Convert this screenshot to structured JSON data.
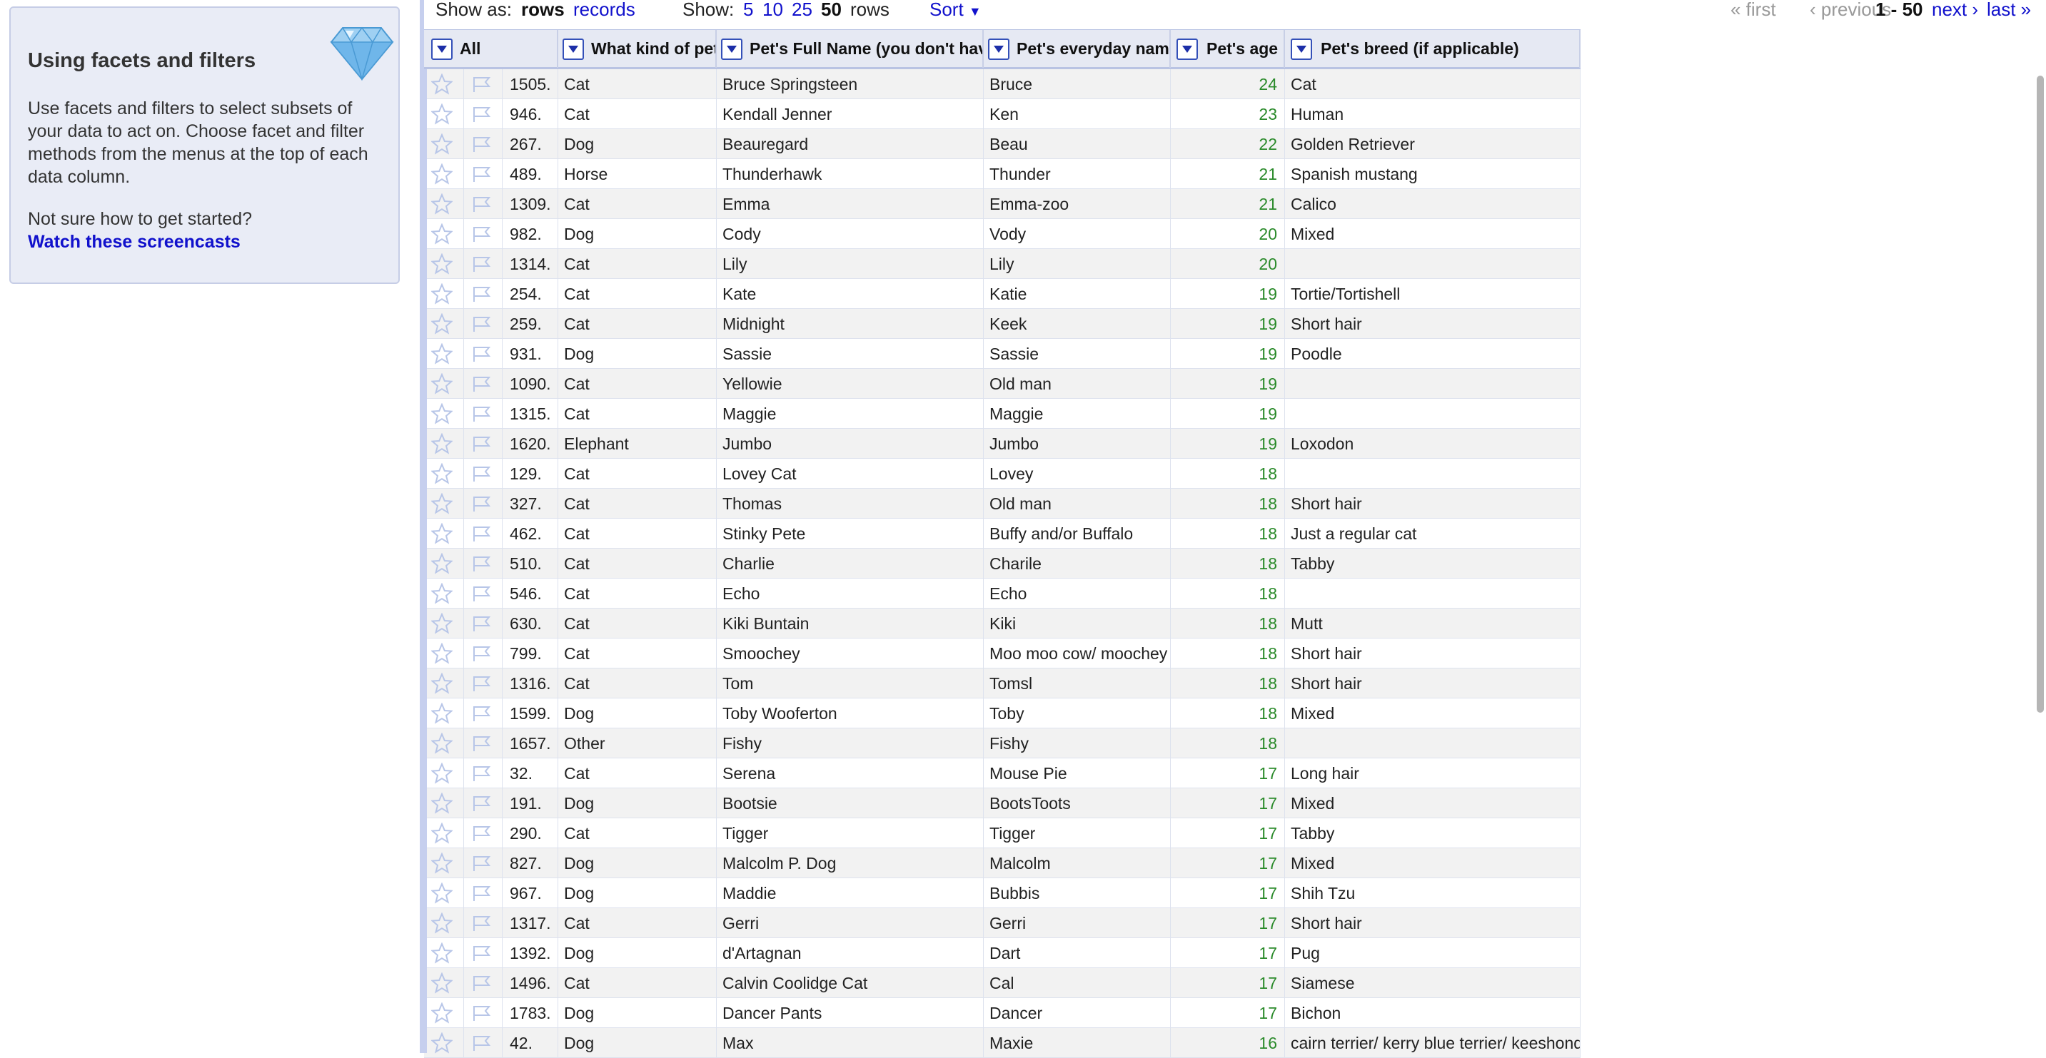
{
  "help": {
    "title": "Using facets and filters",
    "body": "Use facets and filters to select subsets of your data to act on. Choose facet and filter methods from the menus at the top of each data column.",
    "question": "Not sure how to get started?",
    "link": "Watch these screencasts",
    "icon": "diamond-icon"
  },
  "toolbar": {
    "show_as_label": "Show as:",
    "rows_mode": "rows",
    "records_mode": "records",
    "show_label": "Show:",
    "size_5": "5",
    "size_10": "10",
    "size_25": "25",
    "size_50": "50",
    "rows_suffix": "rows",
    "sort_label": "Sort",
    "first": "« first",
    "previous": "‹ previous",
    "range": "1 - 50",
    "next": "next ›",
    "last": "last »"
  },
  "columns": {
    "all": "All",
    "kind": "What kind of pet",
    "full_name": "Pet's Full Name (you don't have",
    "everyday": "Pet's everyday name",
    "age": "Pet's age",
    "breed": "Pet's breed (if applicable)"
  },
  "colors": {
    "link": "#1111cc",
    "age_number": "#2a8a2a",
    "header_bg": "#e6e9f3",
    "help_bg": "#e9ecf6"
  },
  "rows": [
    {
      "num": "1505.",
      "kind": "Cat",
      "full": "Bruce Springsteen",
      "every": "Bruce",
      "age": "24",
      "breed": "Cat"
    },
    {
      "num": "946.",
      "kind": "Cat",
      "full": "Kendall Jenner",
      "every": "Ken",
      "age": "23",
      "breed": "Human"
    },
    {
      "num": "267.",
      "kind": "Dog",
      "full": "Beauregard",
      "every": "Beau",
      "age": "22",
      "breed": "Golden Retriever"
    },
    {
      "num": "489.",
      "kind": "Horse",
      "full": "Thunderhawk",
      "every": "Thunder",
      "age": "21",
      "breed": "Spanish mustang"
    },
    {
      "num": "1309.",
      "kind": "Cat",
      "full": "Emma",
      "every": "Emma-zoo",
      "age": "21",
      "breed": "Calico"
    },
    {
      "num": "982.",
      "kind": "Dog",
      "full": "Cody",
      "every": "Vody",
      "age": "20",
      "breed": "Mixed"
    },
    {
      "num": "1314.",
      "kind": "Cat",
      "full": "Lily",
      "every": "Lily",
      "age": "20",
      "breed": ""
    },
    {
      "num": "254.",
      "kind": "Cat",
      "full": "Kate",
      "every": "Katie",
      "age": "19",
      "breed": "Tortie/Tortishell"
    },
    {
      "num": "259.",
      "kind": "Cat",
      "full": "Midnight",
      "every": "Keek",
      "age": "19",
      "breed": "Short hair"
    },
    {
      "num": "931.",
      "kind": "Dog",
      "full": "Sassie",
      "every": "Sassie",
      "age": "19",
      "breed": "Poodle"
    },
    {
      "num": "1090.",
      "kind": "Cat",
      "full": "Yellowie",
      "every": "Old man",
      "age": "19",
      "breed": ""
    },
    {
      "num": "1315.",
      "kind": "Cat",
      "full": "Maggie",
      "every": "Maggie",
      "age": "19",
      "breed": ""
    },
    {
      "num": "1620.",
      "kind": "Elephant",
      "full": "Jumbo",
      "every": "Jumbo",
      "age": "19",
      "breed": "Loxodon"
    },
    {
      "num": "129.",
      "kind": "Cat",
      "full": "Lovey Cat",
      "every": "Lovey",
      "age": "18",
      "breed": ""
    },
    {
      "num": "327.",
      "kind": "Cat",
      "full": "Thomas",
      "every": "Old man",
      "age": "18",
      "breed": "Short hair"
    },
    {
      "num": "462.",
      "kind": "Cat",
      "full": "Stinky Pete",
      "every": "Buffy and/or Buffalo",
      "age": "18",
      "breed": "Just a regular cat"
    },
    {
      "num": "510.",
      "kind": "Cat",
      "full": "Charlie",
      "every": "Charile",
      "age": "18",
      "breed": "Tabby"
    },
    {
      "num": "546.",
      "kind": "Cat",
      "full": "Echo",
      "every": "Echo",
      "age": "18",
      "breed": ""
    },
    {
      "num": "630.",
      "kind": "Cat",
      "full": "Kiki Buntain",
      "every": "Kiki",
      "age": "18",
      "breed": "Mutt"
    },
    {
      "num": "799.",
      "kind": "Cat",
      "full": "Smoochey",
      "every": "Moo moo cow/ moochey",
      "age": "18",
      "breed": "Short hair"
    },
    {
      "num": "1316.",
      "kind": "Cat",
      "full": "Tom",
      "every": "Tomsl",
      "age": "18",
      "breed": "Short hair"
    },
    {
      "num": "1599.",
      "kind": "Dog",
      "full": "Toby Wooferton",
      "every": "Toby",
      "age": "18",
      "breed": "Mixed"
    },
    {
      "num": "1657.",
      "kind": "Other",
      "full": "Fishy",
      "every": "Fishy",
      "age": "18",
      "breed": ""
    },
    {
      "num": "32.",
      "kind": "Cat",
      "full": "Serena",
      "every": "Mouse Pie",
      "age": "17",
      "breed": "Long hair"
    },
    {
      "num": "191.",
      "kind": "Dog",
      "full": "Bootsie",
      "every": "BootsToots",
      "age": "17",
      "breed": "Mixed"
    },
    {
      "num": "290.",
      "kind": "Cat",
      "full": "Tigger",
      "every": "Tigger",
      "age": "17",
      "breed": "Tabby"
    },
    {
      "num": "827.",
      "kind": "Dog",
      "full": "Malcolm P. Dog",
      "every": "Malcolm",
      "age": "17",
      "breed": "Mixed"
    },
    {
      "num": "967.",
      "kind": "Dog",
      "full": "Maddie",
      "every": "Bubbis",
      "age": "17",
      "breed": "Shih Tzu"
    },
    {
      "num": "1317.",
      "kind": "Cat",
      "full": "Gerri",
      "every": "Gerri",
      "age": "17",
      "breed": "Short hair"
    },
    {
      "num": "1392.",
      "kind": "Dog",
      "full": "d'Artagnan",
      "every": "Dart",
      "age": "17",
      "breed": "Pug"
    },
    {
      "num": "1496.",
      "kind": "Cat",
      "full": "Calvin Coolidge Cat",
      "every": "Cal",
      "age": "17",
      "breed": "Siamese"
    },
    {
      "num": "1783.",
      "kind": "Dog",
      "full": "Dancer Pants",
      "every": "Dancer",
      "age": "17",
      "breed": "Bichon"
    },
    {
      "num": "42.",
      "kind": "Dog",
      "full": "Max",
      "every": "Maxie",
      "age": "16",
      "breed": "cairn terrier/ kerry blue terrier/ keeshond"
    }
  ]
}
